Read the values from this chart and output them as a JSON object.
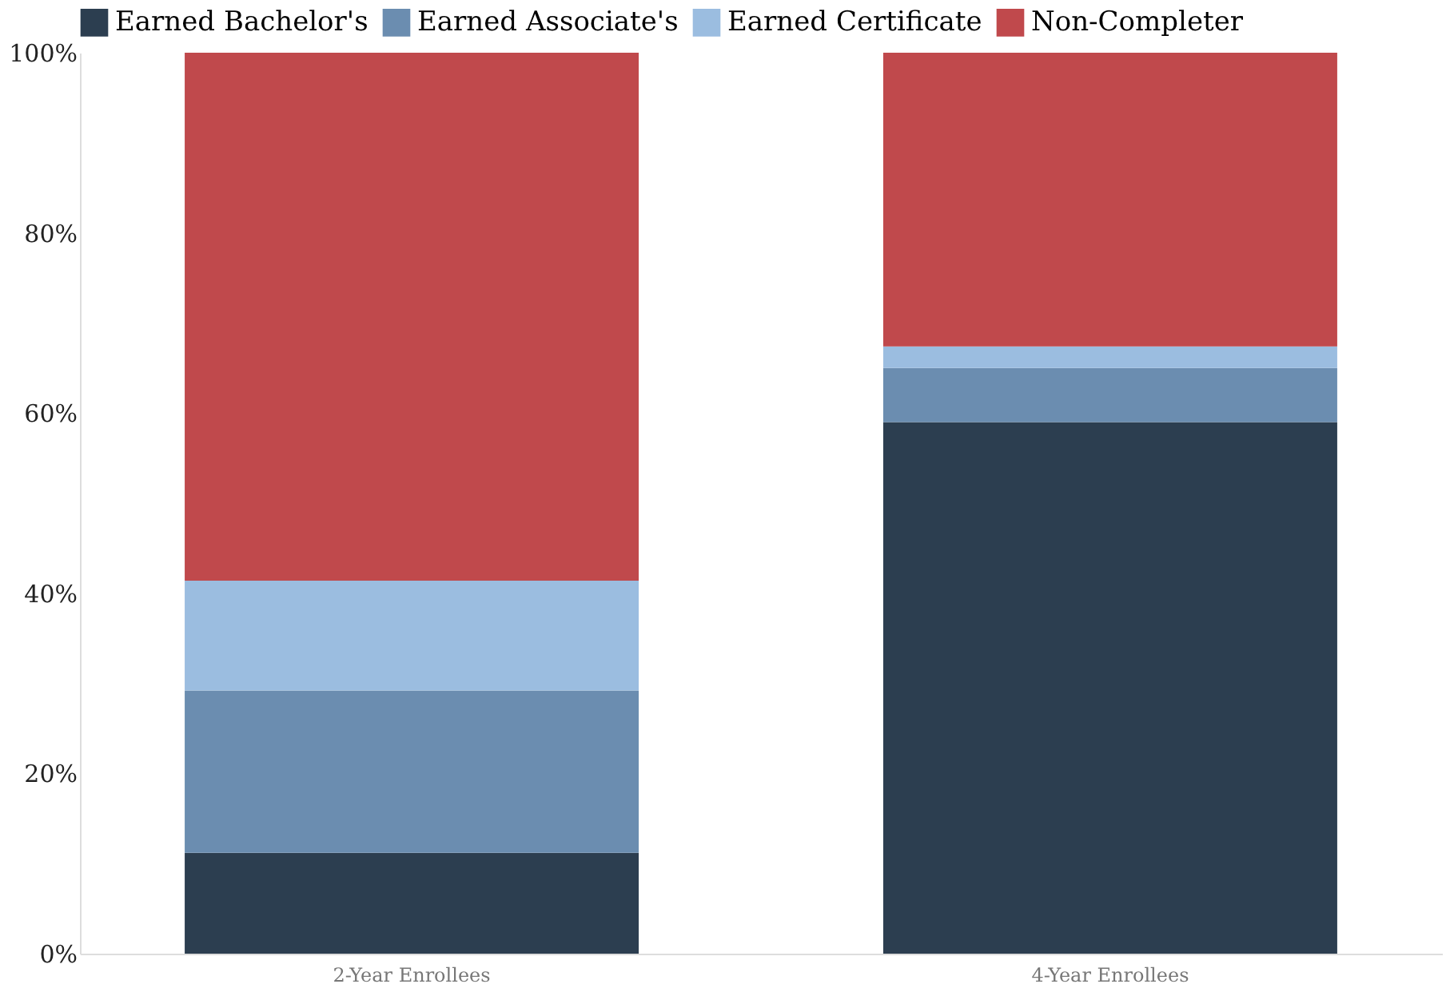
{
  "chart_data": {
    "type": "bar",
    "stacked": true,
    "categories": [
      "2-Year Enrollees",
      "4-Year Enrollees"
    ],
    "series": [
      {
        "name": "Earned Bachelor's",
        "color": "#2c3e50",
        "values": [
          11.2,
          59.0
        ]
      },
      {
        "name": "Earned Associate's",
        "color": "#6b8db0",
        "values": [
          18.0,
          6.0
        ]
      },
      {
        "name": "Earned Certificate",
        "color": "#9bbde0",
        "values": [
          12.2,
          2.4
        ]
      },
      {
        "name": "Non-Completer",
        "color": "#c0494c",
        "values": [
          58.6,
          32.6
        ]
      }
    ],
    "ylim": [
      0,
      100
    ],
    "yticks": [
      {
        "value": 0,
        "label": "0%"
      },
      {
        "value": 20,
        "label": "20%"
      },
      {
        "value": 40,
        "label": "40%"
      },
      {
        "value": 60,
        "label": "60%"
      },
      {
        "value": 80,
        "label": "80%"
      },
      {
        "value": 100,
        "label": "100%"
      }
    ],
    "grid": false,
    "legend": "top left"
  }
}
